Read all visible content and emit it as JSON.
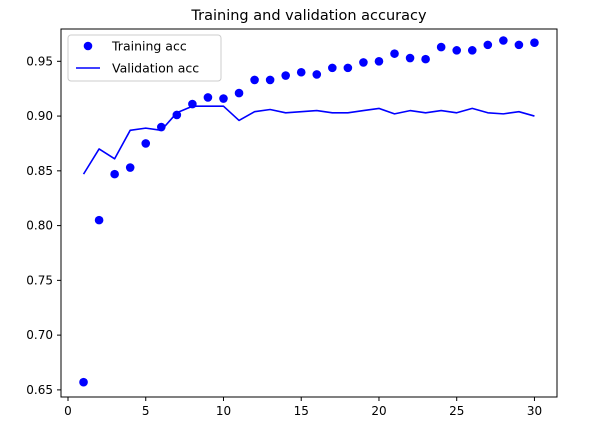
{
  "chart_data": {
    "type": "line",
    "title": "Training and validation accuracy",
    "xlabel": "",
    "ylabel": "",
    "xlim": [
      -0.45,
      31.45
    ],
    "ylim": [
      0.6435,
      0.9795
    ],
    "x_ticks": [
      0,
      5,
      10,
      15,
      20,
      25,
      30
    ],
    "x_tick_labels": [
      "0",
      "5",
      "10",
      "15",
      "20",
      "25",
      "30"
    ],
    "y_ticks": [
      0.65,
      0.7,
      0.75,
      0.8,
      0.85,
      0.9,
      0.95
    ],
    "y_tick_labels": [
      "0.65",
      "0.70",
      "0.75",
      "0.80",
      "0.85",
      "0.90",
      "0.95"
    ],
    "grid": false,
    "legend_position": "top-left",
    "x": [
      1,
      2,
      3,
      4,
      5,
      6,
      7,
      8,
      9,
      10,
      11,
      12,
      13,
      14,
      15,
      16,
      17,
      18,
      19,
      20,
      21,
      22,
      23,
      24,
      25,
      26,
      27,
      28,
      29,
      30
    ],
    "series": [
      {
        "name": "Training acc",
        "style": "markers",
        "color": "#0000ff",
        "values": [
          0.657,
          0.805,
          0.847,
          0.853,
          0.875,
          0.89,
          0.901,
          0.911,
          0.917,
          0.916,
          0.921,
          0.933,
          0.933,
          0.937,
          0.94,
          0.938,
          0.944,
          0.944,
          0.949,
          0.95,
          0.957,
          0.953,
          0.952,
          0.963,
          0.96,
          0.96,
          0.965,
          0.969,
          0.965,
          0.967
        ]
      },
      {
        "name": "Validation acc",
        "style": "line",
        "color": "#0000ff",
        "values": [
          0.847,
          0.87,
          0.861,
          0.887,
          0.889,
          0.887,
          0.903,
          0.909,
          0.909,
          0.909,
          0.896,
          0.904,
          0.906,
          0.903,
          0.904,
          0.905,
          0.903,
          0.903,
          0.905,
          0.907,
          0.902,
          0.905,
          0.903,
          0.905,
          0.903,
          0.907,
          0.903,
          0.902,
          0.904,
          0.9
        ]
      }
    ]
  }
}
